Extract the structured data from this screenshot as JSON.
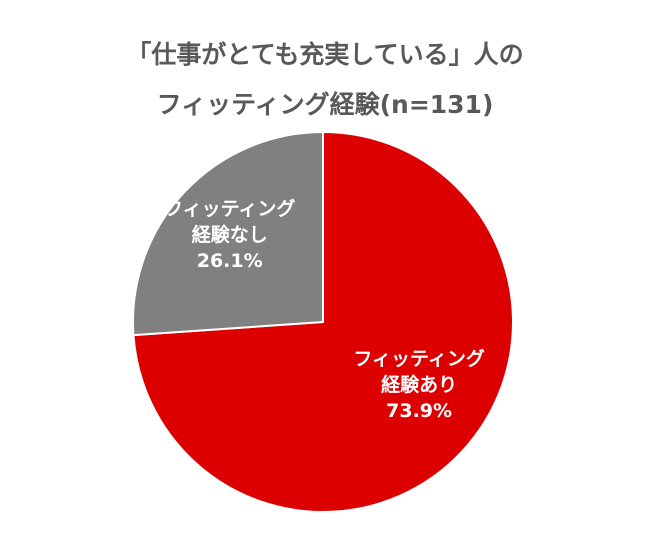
{
  "chart_data": {
    "type": "pie",
    "title_line_1": "「仕事がとても充実している」人の",
    "title_line_2": "フィッティング経験(n=131)",
    "slices": [
      {
        "label_line_1": "フィッティング",
        "label_line_2": "経験あり",
        "value_label": "73.9%",
        "value": 73.9,
        "color": "#dd0000"
      },
      {
        "label_line_1": "フィッティング",
        "label_line_2": "経験なし",
        "value_label": "26.1%",
        "value": 26.1,
        "color": "#808080"
      }
    ],
    "start": "12 o'clock",
    "direction": "clockwise",
    "slice_border_color": "#ffffff"
  }
}
